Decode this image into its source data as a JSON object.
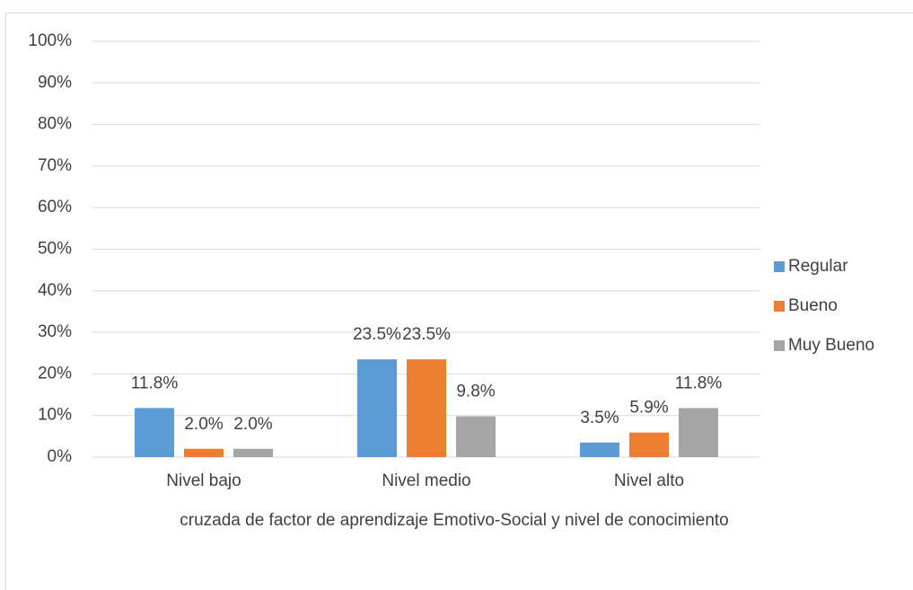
{
  "chart_data": {
    "type": "bar",
    "x_label": "cruzada de factor de aprendizaje Emotivo-Social y nivel de conocimiento",
    "categories": [
      "Nivel bajo",
      "Nivel medio",
      "Nivel alto"
    ],
    "series": [
      {
        "name": "Regular",
        "color": "#5b9bd5",
        "values": [
          11.8,
          23.5,
          3.5
        ],
        "value_labels": [
          "11.8%",
          "23.5%",
          "3.5%"
        ]
      },
      {
        "name": "Bueno",
        "color": "#ed7d31",
        "values": [
          2.0,
          23.5,
          5.9
        ],
        "value_labels": [
          "2.0%",
          "23.5%",
          "5.9%"
        ]
      },
      {
        "name": "Muy Bueno",
        "color": "#a5a5a5",
        "values": [
          2.0,
          9.8,
          11.8
        ],
        "value_labels": [
          "2.0%",
          "9.8%",
          "11.8%"
        ]
      }
    ],
    "ylim": [
      0,
      100
    ],
    "yticks": [
      {
        "value": 0,
        "label": "0%"
      },
      {
        "value": 10,
        "label": "10%"
      },
      {
        "value": 20,
        "label": "20%"
      },
      {
        "value": 30,
        "label": "30%"
      },
      {
        "value": 40,
        "label": "40%"
      },
      {
        "value": 50,
        "label": "50%"
      },
      {
        "value": 60,
        "label": "60%"
      },
      {
        "value": 70,
        "label": "70%"
      },
      {
        "value": 80,
        "label": "80%"
      },
      {
        "value": 90,
        "label": "90%"
      },
      {
        "value": 100,
        "label": "100%"
      }
    ],
    "grid": true,
    "legend": "right"
  }
}
